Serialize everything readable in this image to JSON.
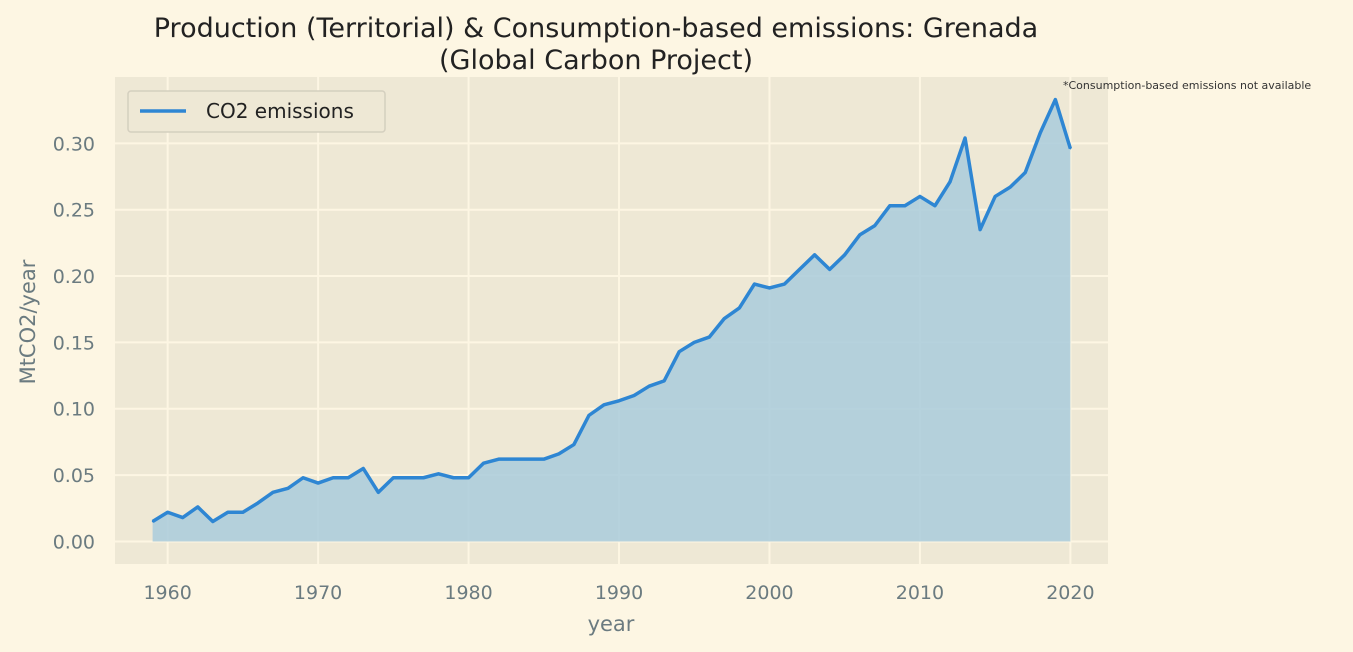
{
  "chart_data": {
    "type": "area",
    "title_line1": "Production (Territorial) & Consumption-based emissions: Grenada",
    "title_line2": "(Global Carbon Project)",
    "note": "*Consumption-based emissions not available",
    "xlabel": "year",
    "ylabel": "MtCO2/year",
    "xlim": [
      1956.5,
      2022.5
    ],
    "ylim": [
      -0.017,
      0.35
    ],
    "x_ticks": [
      1960,
      1970,
      1980,
      1990,
      2000,
      2010,
      2020
    ],
    "y_ticks": [
      0.0,
      0.05,
      0.1,
      0.15,
      0.2,
      0.25,
      0.3
    ],
    "y_tick_labels": [
      "0.00",
      "0.05",
      "0.10",
      "0.15",
      "0.20",
      "0.25",
      "0.30"
    ],
    "grid": true,
    "legend_position": "top-left",
    "series": [
      {
        "name": "CO2 emissions",
        "color": "#2e86d3",
        "fill_color": "#a9cbdc",
        "x": [
          1959,
          1960,
          1961,
          1962,
          1963,
          1964,
          1965,
          1966,
          1967,
          1968,
          1969,
          1970,
          1971,
          1972,
          1973,
          1974,
          1975,
          1976,
          1977,
          1978,
          1979,
          1980,
          1981,
          1982,
          1983,
          1984,
          1985,
          1986,
          1987,
          1988,
          1989,
          1990,
          1991,
          1992,
          1993,
          1994,
          1995,
          1996,
          1997,
          1998,
          1999,
          2000,
          2001,
          2002,
          2003,
          2004,
          2005,
          2006,
          2007,
          2008,
          2009,
          2010,
          2011,
          2012,
          2013,
          2014,
          2015,
          2016,
          2017,
          2018,
          2019,
          2020
        ],
        "values": [
          0.015,
          0.022,
          0.018,
          0.026,
          0.015,
          0.022,
          0.022,
          0.029,
          0.037,
          0.04,
          0.048,
          0.044,
          0.048,
          0.048,
          0.055,
          0.037,
          0.048,
          0.048,
          0.048,
          0.051,
          0.048,
          0.048,
          0.059,
          0.062,
          0.062,
          0.062,
          0.062,
          0.066,
          0.073,
          0.095,
          0.103,
          0.106,
          0.11,
          0.117,
          0.121,
          0.143,
          0.15,
          0.154,
          0.168,
          0.176,
          0.194,
          0.191,
          0.194,
          0.205,
          0.216,
          0.205,
          0.216,
          0.231,
          0.238,
          0.253,
          0.253,
          0.26,
          0.253,
          0.271,
          0.304,
          0.235,
          0.26,
          0.267,
          0.278,
          0.308,
          0.333,
          0.296
        ]
      }
    ]
  }
}
